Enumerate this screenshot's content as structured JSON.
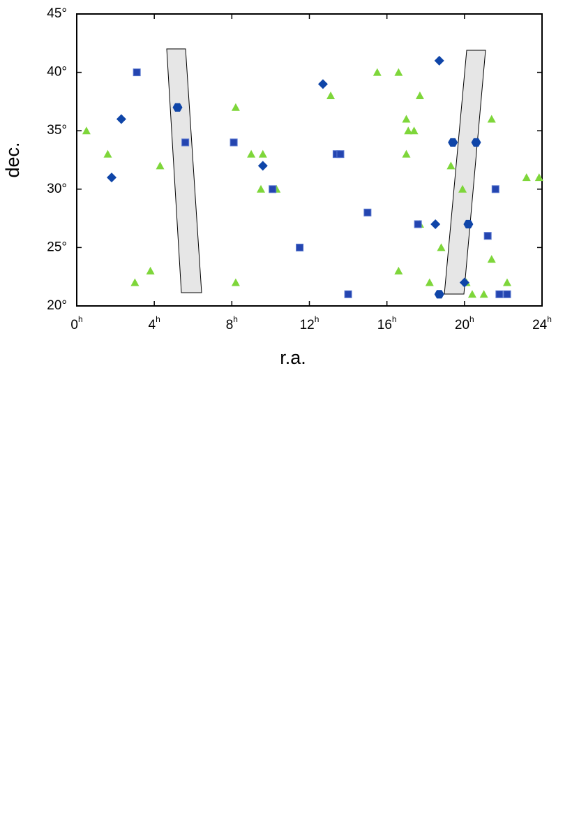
{
  "chart_data": {
    "type": "scatter",
    "x_label": "r.a.",
    "y_label": "dec.",
    "xlim": [
      0,
      24
    ],
    "ylim": [
      20,
      45
    ],
    "xticks": [
      {
        "value": 0,
        "label": "0h"
      },
      {
        "value": 4,
        "label": "4h"
      },
      {
        "value": 8,
        "label": "8h"
      },
      {
        "value": 12,
        "label": "12h"
      },
      {
        "value": 16,
        "label": "16h"
      },
      {
        "value": 20,
        "label": "20h"
      },
      {
        "value": 24,
        "label": "24h"
      }
    ],
    "yticks": [
      {
        "value": 20,
        "label": "20°"
      },
      {
        "value": 25,
        "label": "25°"
      },
      {
        "value": 30,
        "label": "30°"
      },
      {
        "value": 35,
        "label": "35°"
      },
      {
        "value": 40,
        "label": "40°"
      },
      {
        "value": 45,
        "label": "45°"
      }
    ],
    "series": [
      {
        "marker": "triangle",
        "color": "#7ed63a",
        "x": [
          0.5,
          1.6,
          3.0,
          3.8,
          4.3,
          8.2,
          8.2,
          9.0,
          9.6,
          9.5,
          10.3,
          13.1,
          15.5,
          16.6,
          16.6,
          17.0,
          17.1,
          17.4,
          17.0,
          17.7,
          17.7,
          18.2,
          18.8,
          19.3,
          19.9,
          20.1,
          20.4,
          21.0,
          21.4,
          21.4,
          22.2,
          23.2,
          23.85
        ],
        "values": [
          35,
          33,
          22,
          23,
          32,
          37,
          22,
          33,
          33,
          30,
          30,
          38,
          40,
          40,
          23,
          36,
          35,
          35,
          33,
          38,
          27,
          22,
          25,
          32,
          30,
          22,
          21,
          21,
          36,
          24,
          22,
          31,
          31
        ]
      },
      {
        "marker": "square",
        "color": "#2445b0",
        "x": [
          3.1,
          5.6,
          8.1,
          10.1,
          11.5,
          13.4,
          13.6,
          14.0,
          15.0,
          17.6,
          21.2,
          21.6,
          21.8,
          22.2
        ],
        "values": [
          40,
          34,
          34,
          30,
          25,
          33,
          33,
          21,
          28,
          27,
          26,
          30,
          21,
          21
        ]
      },
      {
        "marker": "diamond",
        "color": "#0f45a8",
        "x": [
          1.8,
          2.3,
          9.6,
          12.7,
          18.5,
          18.7,
          20.0
        ],
        "values": [
          31,
          36,
          32,
          39,
          27,
          41,
          22
        ]
      },
      {
        "marker": "hexagon",
        "color": "#0f45a8",
        "x": [
          5.2,
          18.7,
          19.4,
          20.2,
          20.6
        ],
        "values": [
          37,
          21,
          34,
          27,
          34
        ]
      }
    ]
  }
}
